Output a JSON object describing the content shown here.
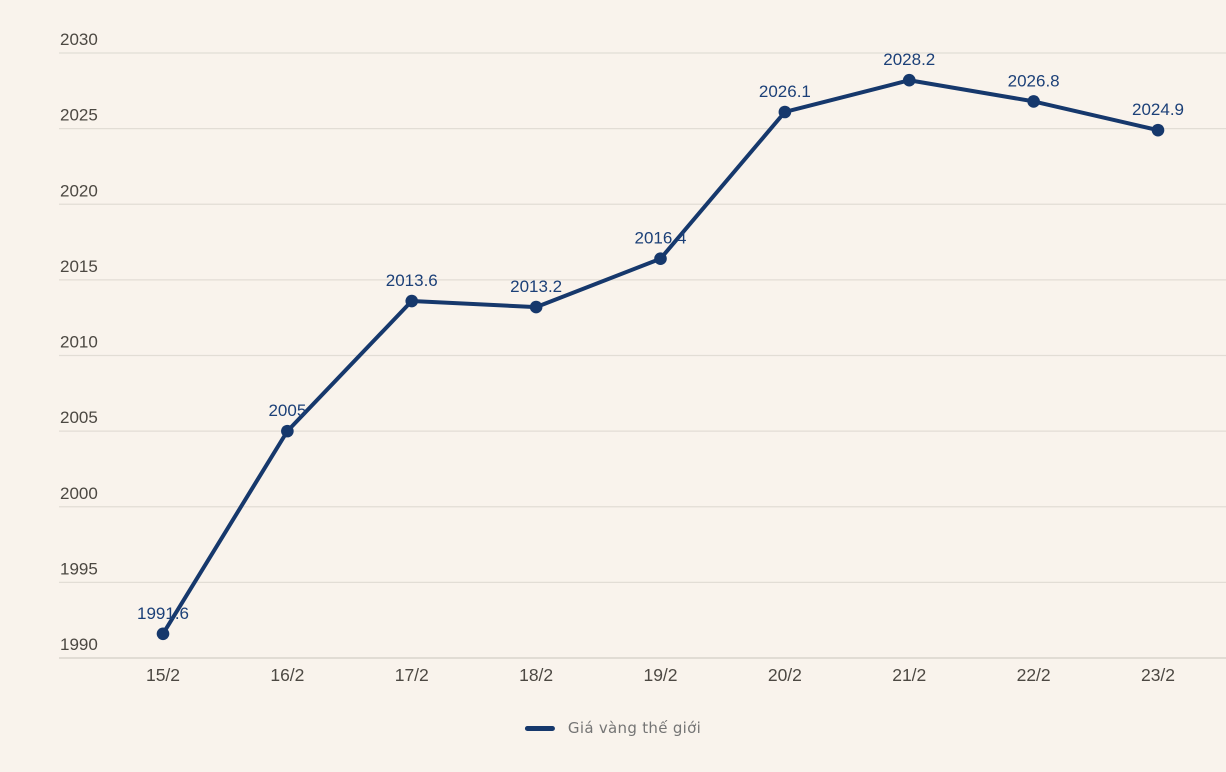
{
  "chart_data": {
    "type": "line",
    "title": "",
    "xlabel": "",
    "ylabel": "",
    "categories": [
      "15/2",
      "16/2",
      "17/2",
      "18/2",
      "19/2",
      "20/2",
      "21/2",
      "22/2",
      "23/2"
    ],
    "series": [
      {
        "name": "Giá vàng thế giới",
        "values": [
          1991.6,
          2005,
          2013.6,
          2013.2,
          2016.4,
          2026.1,
          2028.2,
          2026.8,
          2024.9
        ],
        "point_labels": [
          "1991.6",
          "2005",
          "2013.6",
          "2013.2",
          "2016.4",
          "2026.1",
          "2028.2",
          "2026.8",
          "2024.9"
        ]
      }
    ],
    "y_ticks": [
      1990,
      1995,
      2000,
      2005,
      2010,
      2015,
      2020,
      2025,
      2030
    ],
    "ylim": [
      1990,
      2030
    ],
    "grid": "horizontal",
    "legend_position": "bottom-center",
    "colors": {
      "line": "#16386c",
      "marker": "#16386c",
      "value_label": "#1c4078",
      "tick_label": "#4c4842",
      "gridline": "#e2ddd5",
      "axis_line": "#d9d4cc",
      "background": "#f9f3ec",
      "legend_text": "#757575"
    }
  },
  "legend": {
    "label": "Giá vàng thế giới"
  }
}
